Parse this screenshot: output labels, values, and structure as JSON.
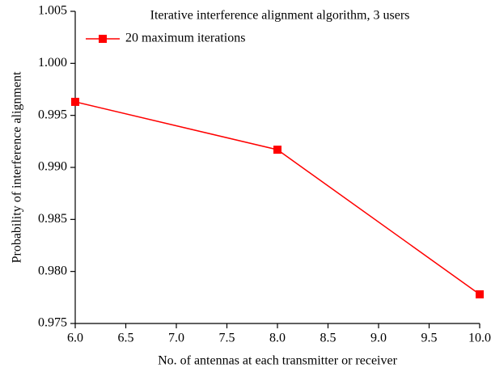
{
  "chart_data": {
    "type": "line",
    "title": "Iterative interference alignment algorithm, 3 users",
    "xlabel": "No. of antennas at each transmitter or receiver",
    "ylabel": "Probability of interference alignment",
    "x": [
      6,
      8,
      10
    ],
    "series": [
      {
        "name": "20 maximum iterations",
        "color": "#ff0000",
        "values": [
          0.9963,
          0.9917,
          0.9778
        ]
      }
    ],
    "xlim": [
      6,
      10
    ],
    "xticks": [
      {
        "value": 6,
        "label": "6.0"
      },
      6.5,
      {
        "value": 7,
        "label": "7.0"
      },
      7.5,
      {
        "value": 8,
        "label": "8.0"
      },
      8.5,
      {
        "value": 9,
        "label": "9.0"
      },
      9.5,
      {
        "value": 10,
        "label": "10.0"
      }
    ],
    "ylim": [
      0.975,
      1.005
    ],
    "yticks": [
      0.975,
      {
        "value": 0.98,
        "label": "0.980"
      },
      0.985,
      {
        "value": 0.99,
        "label": "0.990"
      },
      0.995,
      {
        "value": 1,
        "label": "1.000"
      },
      1.005
    ],
    "legend": "upper left",
    "grid": false
  }
}
